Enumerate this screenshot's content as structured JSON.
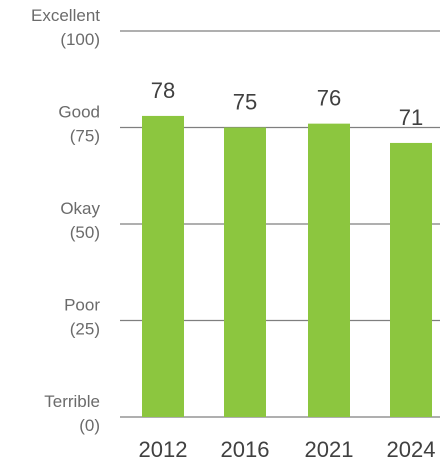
{
  "chart_data": {
    "type": "bar",
    "categories": [
      "2012",
      "2016",
      "2021",
      "2024"
    ],
    "values": [
      78,
      75,
      76,
      71
    ],
    "ylim": [
      0,
      100
    ],
    "yticks": [
      {
        "value": 100,
        "line1": "Excellent",
        "line2": "(100)"
      },
      {
        "value": 75,
        "line1": "Good",
        "line2": "(75)"
      },
      {
        "value": 50,
        "line1": "Okay",
        "line2": "(50)"
      },
      {
        "value": 25,
        "line1": "Poor",
        "line2": "(25)"
      },
      {
        "value": 0,
        "line1": "Terrible",
        "line2": "(0)"
      }
    ],
    "grid": true,
    "bar_color": "#8cc63f"
  }
}
